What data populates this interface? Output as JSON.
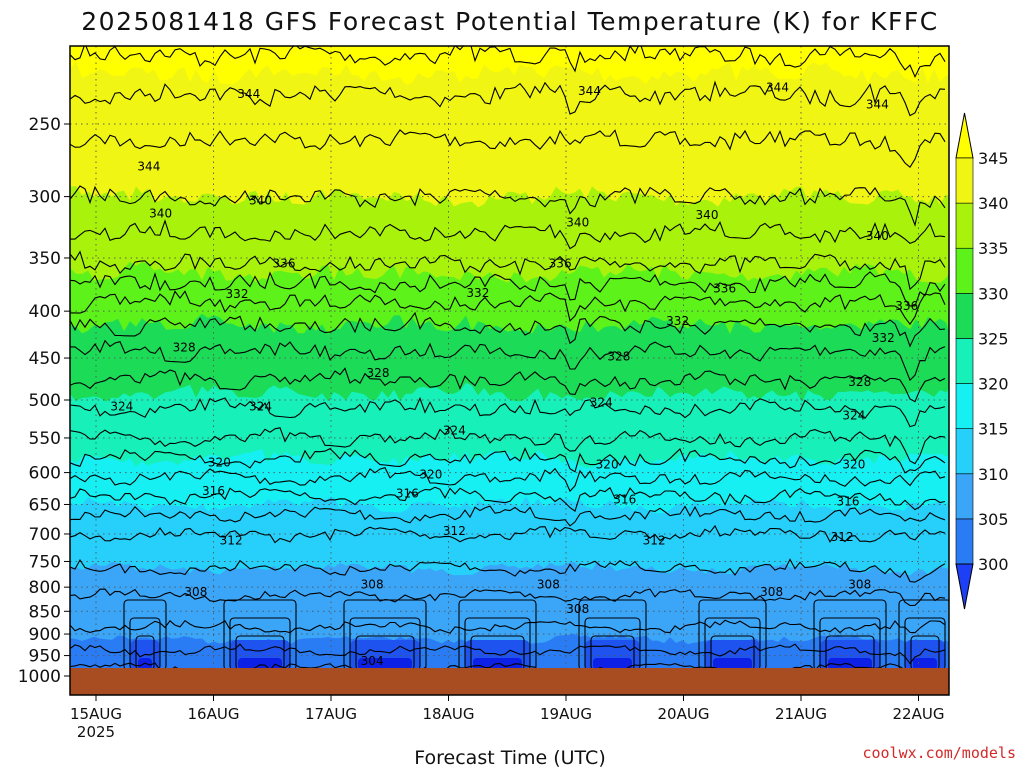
{
  "title": "2025081418 GFS Forecast Potential Temperature (K) for KFFC",
  "credit": "coolwx.com/models",
  "chart_data": {
    "type": "heatmap",
    "title": "2025081418 GFS Forecast Potential Temperature (K) for KFFC",
    "xlabel": "Forecast Time (UTC)",
    "ylabel": "",
    "x_ticks": [
      "15AUG",
      "16AUG",
      "17AUG",
      "18AUG",
      "19AUG",
      "20AUG",
      "21AUG",
      "22AUG"
    ],
    "x_year_label": "2025",
    "y_ticks": [
      250,
      300,
      350,
      400,
      450,
      500,
      550,
      600,
      650,
      700,
      750,
      800,
      850,
      900,
      950,
      1000
    ],
    "y_scale": "log",
    "y_direction": "inverted",
    "ylim": [
      1000,
      200
    ],
    "grid": true,
    "colorbar": {
      "levels": [
        300,
        305,
        310,
        315,
        320,
        325,
        330,
        335,
        340,
        345
      ],
      "colors": [
        "#1d3ff5",
        "#2a7cf5",
        "#3ba5f8",
        "#26d0fa",
        "#16f0f2",
        "#17f0b8",
        "#1cdb57",
        "#5cf21a",
        "#a8f20c",
        "#f0f513",
        "#ffff00"
      ],
      "extend": "both"
    },
    "ground_color": "#a84c22",
    "contour_labels": [
      {
        "value": 344,
        "x": 1.3,
        "p": 232
      },
      {
        "value": 344,
        "x": 4.2,
        "p": 230
      },
      {
        "value": 344,
        "x": 5.8,
        "p": 228
      },
      {
        "value": 344,
        "x": 6.65,
        "p": 238
      },
      {
        "value": 344,
        "x": 0.45,
        "p": 278
      },
      {
        "value": 340,
        "x": 0.55,
        "p": 313
      },
      {
        "value": 340,
        "x": 1.4,
        "p": 303
      },
      {
        "value": 340,
        "x": 4.1,
        "p": 320
      },
      {
        "value": 340,
        "x": 5.2,
        "p": 314
      },
      {
        "value": 340,
        "x": 6.65,
        "p": 331
      },
      {
        "value": 336,
        "x": 1.6,
        "p": 355
      },
      {
        "value": 336,
        "x": 3.95,
        "p": 355
      },
      {
        "value": 336,
        "x": 5.35,
        "p": 378
      },
      {
        "value": 336,
        "x": 6.9,
        "p": 395
      },
      {
        "value": 332,
        "x": 1.2,
        "p": 383
      },
      {
        "value": 332,
        "x": 3.25,
        "p": 382
      },
      {
        "value": 332,
        "x": 4.95,
        "p": 410
      },
      {
        "value": 332,
        "x": 6.7,
        "p": 428
      },
      {
        "value": 328,
        "x": 0.75,
        "p": 438
      },
      {
        "value": 328,
        "x": 2.4,
        "p": 467
      },
      {
        "value": 328,
        "x": 4.45,
        "p": 448
      },
      {
        "value": 328,
        "x": 6.5,
        "p": 478
      },
      {
        "value": 324,
        "x": 0.22,
        "p": 508
      },
      {
        "value": 324,
        "x": 1.4,
        "p": 508
      },
      {
        "value": 324,
        "x": 3.05,
        "p": 540
      },
      {
        "value": 324,
        "x": 4.3,
        "p": 503
      },
      {
        "value": 324,
        "x": 6.45,
        "p": 520
      },
      {
        "value": 320,
        "x": 1.05,
        "p": 585
      },
      {
        "value": 320,
        "x": 2.85,
        "p": 603
      },
      {
        "value": 320,
        "x": 4.35,
        "p": 588
      },
      {
        "value": 320,
        "x": 6.45,
        "p": 588
      },
      {
        "value": 316,
        "x": 1.0,
        "p": 628
      },
      {
        "value": 316,
        "x": 2.65,
        "p": 632
      },
      {
        "value": 316,
        "x": 4.5,
        "p": 642
      },
      {
        "value": 316,
        "x": 6.4,
        "p": 645
      },
      {
        "value": 312,
        "x": 1.15,
        "p": 712
      },
      {
        "value": 312,
        "x": 3.05,
        "p": 695
      },
      {
        "value": 312,
        "x": 4.75,
        "p": 712
      },
      {
        "value": 312,
        "x": 6.35,
        "p": 705
      },
      {
        "value": 308,
        "x": 0.85,
        "p": 810
      },
      {
        "value": 308,
        "x": 2.35,
        "p": 795
      },
      {
        "value": 308,
        "x": 3.85,
        "p": 795
      },
      {
        "value": 308,
        "x": 4.1,
        "p": 845
      },
      {
        "value": 308,
        "x": 5.75,
        "p": 810
      },
      {
        "value": 308,
        "x": 6.5,
        "p": 795
      },
      {
        "value": 304,
        "x": 2.35,
        "p": 963
      }
    ]
  }
}
